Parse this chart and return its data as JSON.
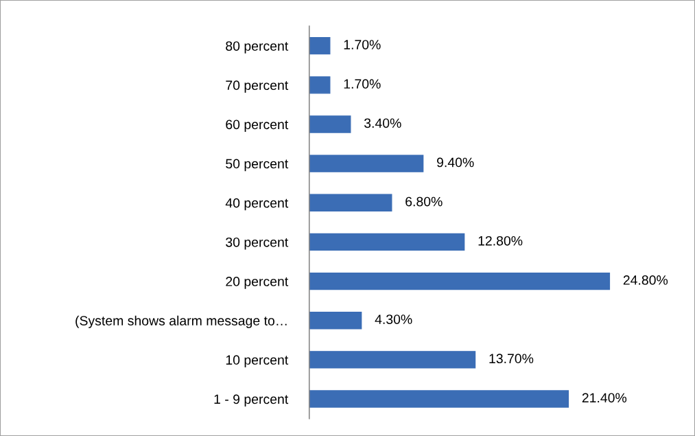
{
  "chart_data": {
    "type": "bar",
    "orientation": "horizontal",
    "categories": [
      "80 percent",
      "70 percent",
      "60 percent",
      "50 percent",
      "40 percent",
      "30 percent",
      "20 percent",
      "(System shows alarm message to…",
      "10 percent",
      "1 - 9 percent"
    ],
    "values": [
      1.7,
      1.7,
      3.4,
      9.4,
      6.8,
      12.8,
      24.8,
      4.3,
      13.7,
      21.4
    ],
    "value_labels": [
      "1.70%",
      "1.70%",
      "3.40%",
      "9.40%",
      "6.80%",
      "12.80%",
      "24.80%",
      "4.30%",
      "13.70%",
      "21.40%"
    ],
    "color": "#3b6db5",
    "grid": false,
    "legend": false
  }
}
